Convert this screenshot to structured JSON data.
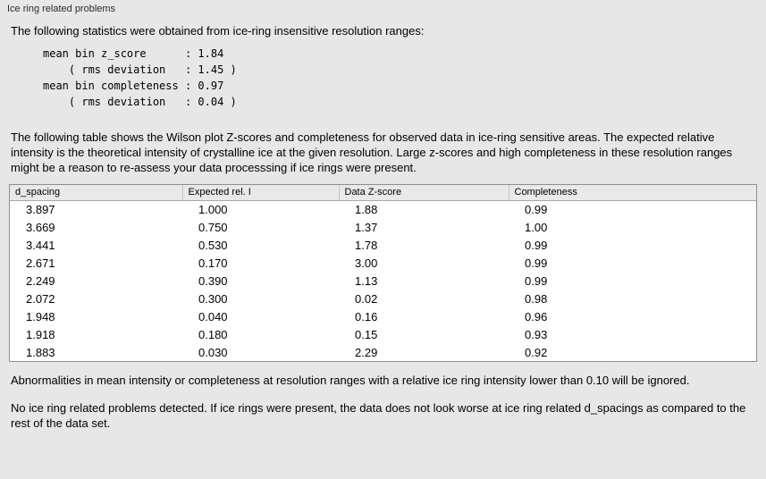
{
  "panel": {
    "title": "Ice ring related problems"
  },
  "sections": {
    "intro": "The following statistics were obtained from ice-ring insensitive resolution ranges:",
    "stats_block": "mean bin z_score      : 1.84\n    ( rms deviation   : 1.45 )\nmean bin completeness : 0.97\n    ( rms deviation   : 0.04 )",
    "table_description": "The following table shows the Wilson plot Z-scores and completeness for observed data in ice-ring sensitive areas. The expected relative intensity is the theoretical intensity of crystalline ice at the given resolution. Large z-scores and high completeness in these resolution ranges might be a reason to re-assess your data processsing if ice rings were present.",
    "ignore_note": "Abnormalities in mean intensity or completeness at resolution ranges with a relative ice ring intensity lower than 0.10 will be ignored.",
    "conclusion": "No ice ring related problems detected. If ice rings were present, the data does not look worse at ice ring related d_spacings as compared to the rest of the data set."
  },
  "table": {
    "headers": [
      "d_spacing",
      "Expected rel. I",
      "Data Z-score",
      "Completeness"
    ],
    "rows": [
      [
        "3.897",
        "1.000",
        "1.88",
        "0.99"
      ],
      [
        "3.669",
        "0.750",
        "1.37",
        "1.00"
      ],
      [
        "3.441",
        "0.530",
        "1.78",
        "0.99"
      ],
      [
        "2.671",
        "0.170",
        "3.00",
        "0.99"
      ],
      [
        "2.249",
        "0.390",
        "1.13",
        "0.99"
      ],
      [
        "2.072",
        "0.300",
        "0.02",
        "0.98"
      ],
      [
        "1.948",
        "0.040",
        "0.16",
        "0.96"
      ],
      [
        "1.918",
        "0.180",
        "0.15",
        "0.93"
      ],
      [
        "1.883",
        "0.030",
        "2.29",
        "0.92"
      ]
    ]
  }
}
